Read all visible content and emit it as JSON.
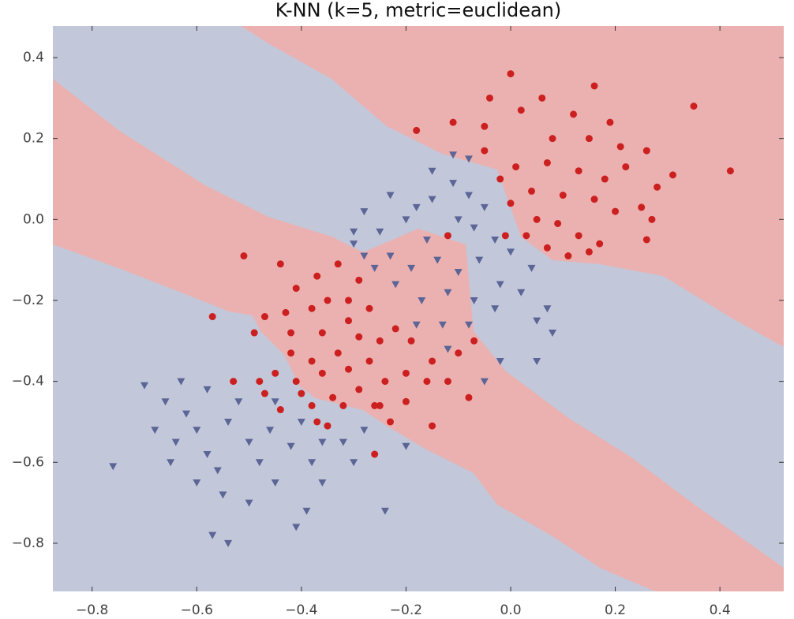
{
  "chart_data": {
    "type": "scatter",
    "title": "K-NN (k=5, metric=euclidean)",
    "xlim": [
      -0.875,
      0.522
    ],
    "ylim": [
      -0.919,
      0.478
    ],
    "xticks": [
      {
        "value": -0.8,
        "label": "−0.8"
      },
      {
        "value": -0.6,
        "label": "−0.6"
      },
      {
        "value": -0.4,
        "label": "−0.4"
      },
      {
        "value": -0.2,
        "label": "−0.2"
      },
      {
        "value": 0,
        "label": "0.0"
      },
      0.2,
      0.4
    ],
    "yticks": [
      {
        "value": -0.8,
        "label": "−0.8"
      },
      {
        "value": -0.6,
        "label": "−0.6"
      },
      {
        "value": -0.4,
        "label": "−0.4"
      },
      {
        "value": -0.2,
        "label": "−0.2"
      },
      {
        "value": 0,
        "label": "0.0"
      },
      0.2,
      0.4
    ],
    "series": [
      {
        "color": "#cc2020",
        "marker": "circle",
        "x": [
          0.0,
          0.16,
          0.35,
          0.42,
          -0.18,
          -0.11,
          -0.04,
          -0.05,
          0.06,
          0.12,
          0.19,
          0.02,
          0.08,
          0.15,
          0.21,
          0.26,
          0.31,
          0.28,
          0.22,
          0.18,
          0.13,
          0.07,
          0.01,
          -0.02,
          -0.05,
          0.04,
          0.1,
          0.16,
          0.2,
          0.25,
          0.27,
          0.09,
          0.05,
          0.0,
          -0.01,
          0.03,
          0.13,
          0.17,
          0.26,
          0.07,
          0.15,
          0.11,
          -0.12,
          -0.51,
          -0.44,
          -0.37,
          -0.33,
          -0.41,
          -0.35,
          -0.29,
          -0.31,
          -0.27,
          -0.38,
          -0.43,
          -0.47,
          -0.57,
          -0.49,
          -0.42,
          -0.36,
          -0.31,
          -0.29,
          -0.25,
          -0.22,
          -0.19,
          -0.33,
          -0.38,
          -0.42,
          -0.45,
          -0.41,
          -0.36,
          -0.31,
          -0.27,
          -0.24,
          -0.2,
          -0.16,
          -0.29,
          -0.34,
          -0.38,
          -0.4,
          -0.47,
          -0.53,
          -0.44,
          -0.37,
          -0.32,
          -0.26,
          -0.2,
          -0.25,
          -0.15,
          -0.1,
          -0.07,
          -0.15,
          -0.26,
          -0.08,
          -0.12,
          -0.23,
          -0.35,
          -0.48
        ],
        "y": [
          0.36,
          0.33,
          0.28,
          0.12,
          0.22,
          0.24,
          0.3,
          0.23,
          0.3,
          0.26,
          0.24,
          0.27,
          0.2,
          0.2,
          0.18,
          0.17,
          0.11,
          0.08,
          0.13,
          0.1,
          0.12,
          0.14,
          0.13,
          0.1,
          0.17,
          0.07,
          0.06,
          0.05,
          0.02,
          0.03,
          0.0,
          -0.01,
          0.0,
          0.04,
          -0.04,
          -0.04,
          -0.04,
          -0.06,
          -0.05,
          -0.07,
          -0.08,
          -0.09,
          -0.04,
          -0.09,
          -0.11,
          -0.14,
          -0.11,
          -0.17,
          -0.2,
          -0.15,
          -0.2,
          -0.22,
          -0.22,
          -0.23,
          -0.24,
          -0.24,
          -0.28,
          -0.28,
          -0.28,
          -0.25,
          -0.29,
          -0.3,
          -0.27,
          -0.3,
          -0.33,
          -0.35,
          -0.33,
          -0.38,
          -0.4,
          -0.38,
          -0.37,
          -0.35,
          -0.4,
          -0.38,
          -0.4,
          -0.42,
          -0.44,
          -0.46,
          -0.43,
          -0.43,
          -0.4,
          -0.47,
          -0.5,
          -0.46,
          -0.46,
          -0.45,
          -0.46,
          -0.35,
          -0.33,
          -0.3,
          -0.51,
          -0.58,
          -0.44,
          -0.4,
          -0.5,
          -0.51,
          -0.4
        ]
      },
      {
        "color": "#5b6596",
        "marker": "triangle-down",
        "x": [
          -0.76,
          -0.7,
          -0.66,
          -0.64,
          -0.62,
          -0.6,
          -0.58,
          -0.56,
          -0.54,
          -0.52,
          -0.5,
          -0.48,
          -0.46,
          -0.45,
          -0.42,
          -0.4,
          -0.38,
          -0.36,
          -0.6,
          -0.55,
          -0.5,
          -0.57,
          -0.54,
          -0.41,
          -0.39,
          -0.65,
          -0.68,
          -0.63,
          -0.58,
          -0.45,
          -0.32,
          -0.28,
          -0.24,
          -0.2,
          -0.3,
          -0.36,
          -0.16,
          -0.2,
          -0.25,
          -0.28,
          -0.3,
          -0.23,
          -0.19,
          -0.14,
          -0.1,
          -0.06,
          -0.03,
          0.0,
          0.04,
          -0.02,
          -0.07,
          -0.12,
          -0.17,
          -0.22,
          -0.26,
          -0.13,
          -0.08,
          -0.03,
          0.02,
          0.07,
          0.05,
          0.08,
          -0.15,
          -0.11,
          -0.08,
          -0.05,
          -0.1,
          -0.15,
          -0.18,
          -0.07,
          -0.02,
          -0.05,
          0.05,
          -0.12,
          -0.18,
          -0.28,
          -0.3,
          -0.23,
          -0.11,
          -0.08
        ],
        "y": [
          -0.61,
          -0.41,
          -0.45,
          -0.55,
          -0.48,
          -0.52,
          -0.58,
          -0.62,
          -0.5,
          -0.45,
          -0.55,
          -0.6,
          -0.52,
          -0.65,
          -0.56,
          -0.5,
          -0.6,
          -0.55,
          -0.65,
          -0.68,
          -0.7,
          -0.78,
          -0.8,
          -0.76,
          -0.72,
          -0.6,
          -0.52,
          -0.4,
          -0.42,
          -0.45,
          -0.55,
          -0.52,
          -0.72,
          -0.56,
          -0.6,
          -0.65,
          -0.05,
          0.0,
          -0.03,
          0.02,
          -0.06,
          -0.09,
          -0.12,
          -0.1,
          -0.13,
          -0.1,
          -0.05,
          -0.08,
          -0.12,
          -0.16,
          -0.2,
          -0.18,
          -0.2,
          -0.16,
          -0.12,
          -0.26,
          -0.26,
          -0.22,
          -0.18,
          -0.22,
          -0.25,
          -0.28,
          0.12,
          0.09,
          0.06,
          0.03,
          0.0,
          0.05,
          0.03,
          -0.02,
          -0.35,
          -0.4,
          -0.35,
          -0.32,
          -0.26,
          -0.09,
          -0.03,
          0.06,
          0.16,
          0.15
        ]
      }
    ]
  }
}
